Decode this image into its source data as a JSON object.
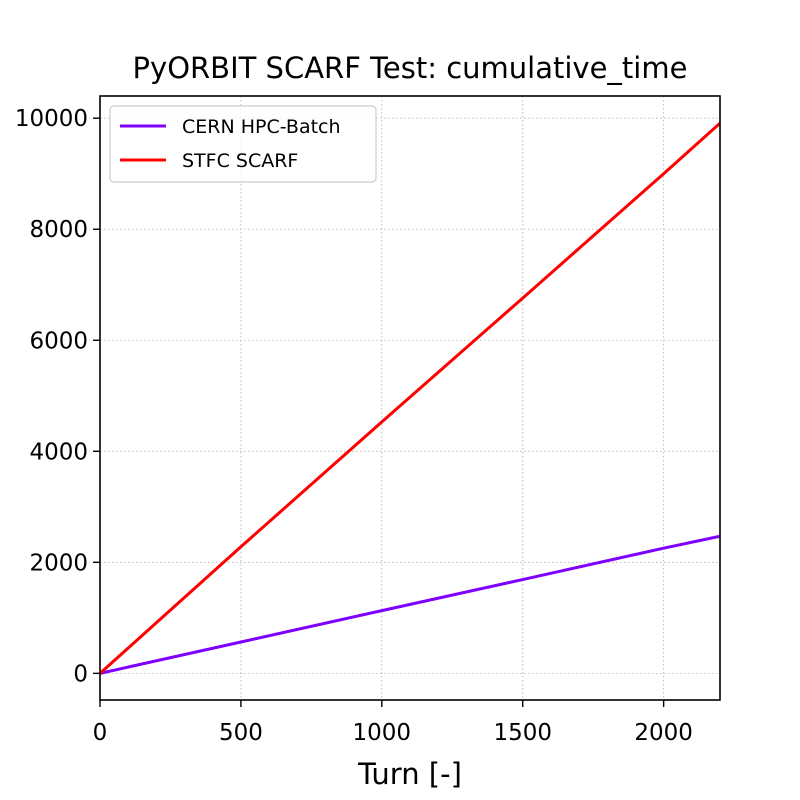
{
  "chart_data": {
    "type": "line",
    "title": "PyORBIT SCARF Test: cumulative_time",
    "xlabel": "Turn [-]",
    "ylabel": "",
    "xlim": [
      0,
      2200
    ],
    "ylim": [
      -480,
      10400
    ],
    "xticks": [
      0,
      500,
      1000,
      1500,
      2000
    ],
    "yticks": [
      0,
      2000,
      4000,
      6000,
      8000,
      10000
    ],
    "xtick_labels": [
      "0",
      "500",
      "1000",
      "1500",
      "2000"
    ],
    "ytick_labels": [
      "0",
      "2000",
      "4000",
      "6000",
      "8000",
      "10000"
    ],
    "grid": true,
    "legend_position": "top-left",
    "series": [
      {
        "name": "CERN HPC-Batch",
        "color": "#8000ff",
        "x": [
          0,
          500,
          1000,
          1500,
          2000,
          2200
        ],
        "y": [
          0,
          565,
          1130,
          1690,
          2255,
          2470
        ]
      },
      {
        "name": "STFC SCARF",
        "color": "#ff0000",
        "x": [
          0,
          500,
          1000,
          1500,
          2000,
          2200
        ],
        "y": [
          0,
          2280,
          4530,
          6760,
          9000,
          9910
        ]
      }
    ]
  }
}
